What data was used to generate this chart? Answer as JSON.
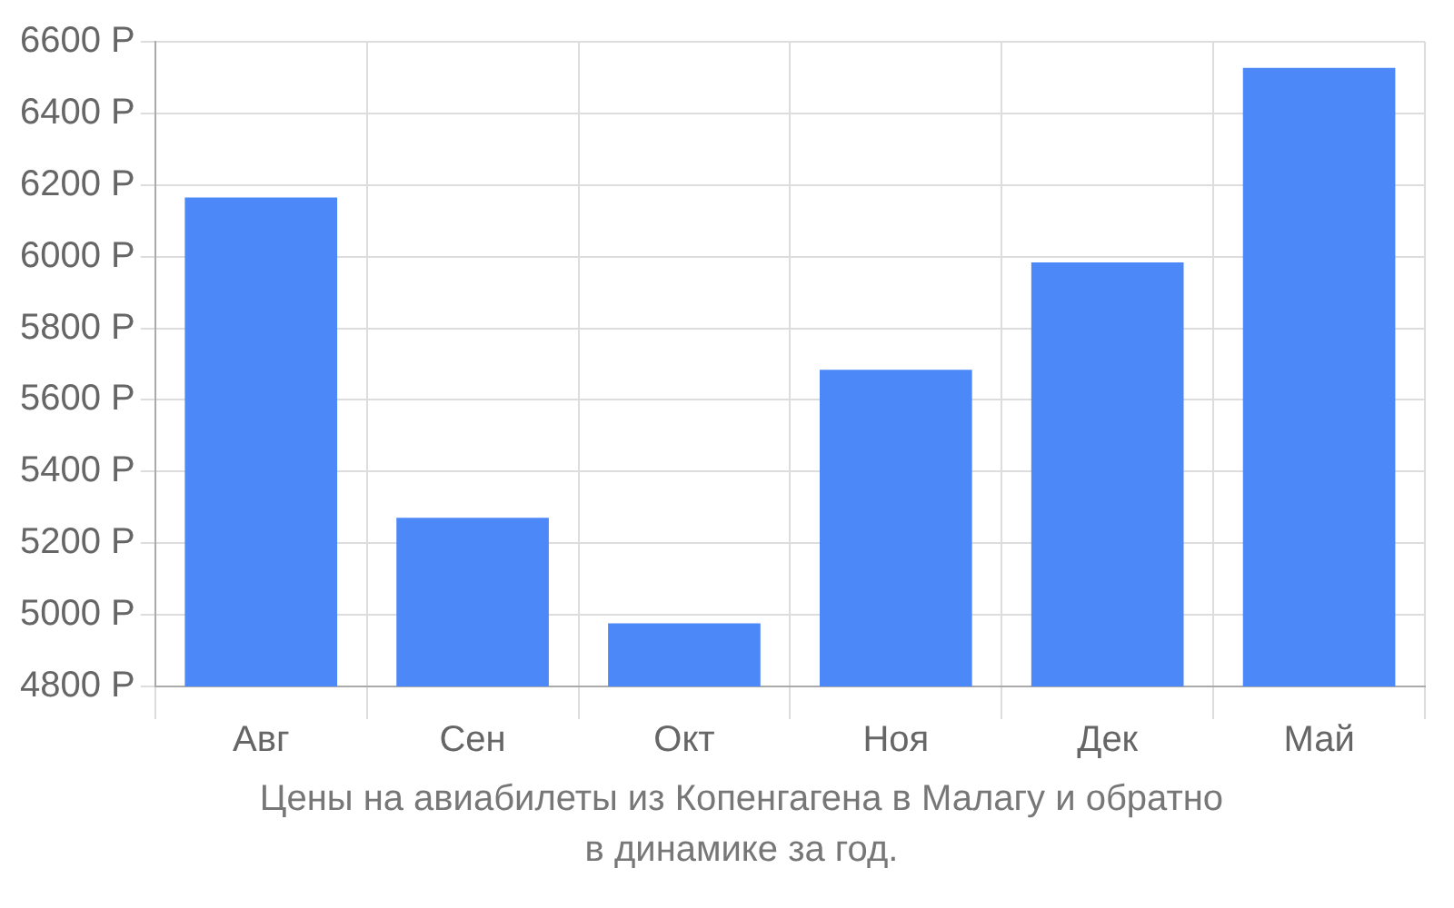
{
  "chart_data": {
    "type": "bar",
    "categories": [
      "Авг",
      "Сен",
      "Окт",
      "Ноя",
      "Дек",
      "Май"
    ],
    "values": [
      6165,
      5271,
      4976,
      5684,
      5984,
      6527
    ],
    "color": "#4d88f9",
    "ylim": [
      4800,
      6600
    ],
    "yticks": [
      {
        "value": 4800,
        "label": "4800 Р"
      },
      {
        "value": 5000,
        "label": "5000 Р"
      },
      {
        "value": 5200,
        "label": "5200 Р"
      },
      {
        "value": 5400,
        "label": "5400 Р"
      },
      {
        "value": 5600,
        "label": "5600 Р"
      },
      {
        "value": 5800,
        "label": "5800 Р"
      },
      {
        "value": 6000,
        "label": "6000 Р"
      },
      {
        "value": 6200,
        "label": "6200 Р"
      },
      {
        "value": 6400,
        "label": "6400 Р"
      },
      {
        "value": 6600,
        "label": "6600 Р"
      }
    ],
    "grid": true,
    "legend": false,
    "annotations": [
      "Цены на авиабилеты из Копенгагена в Малагу и обратно",
      "в динамике за год."
    ]
  }
}
